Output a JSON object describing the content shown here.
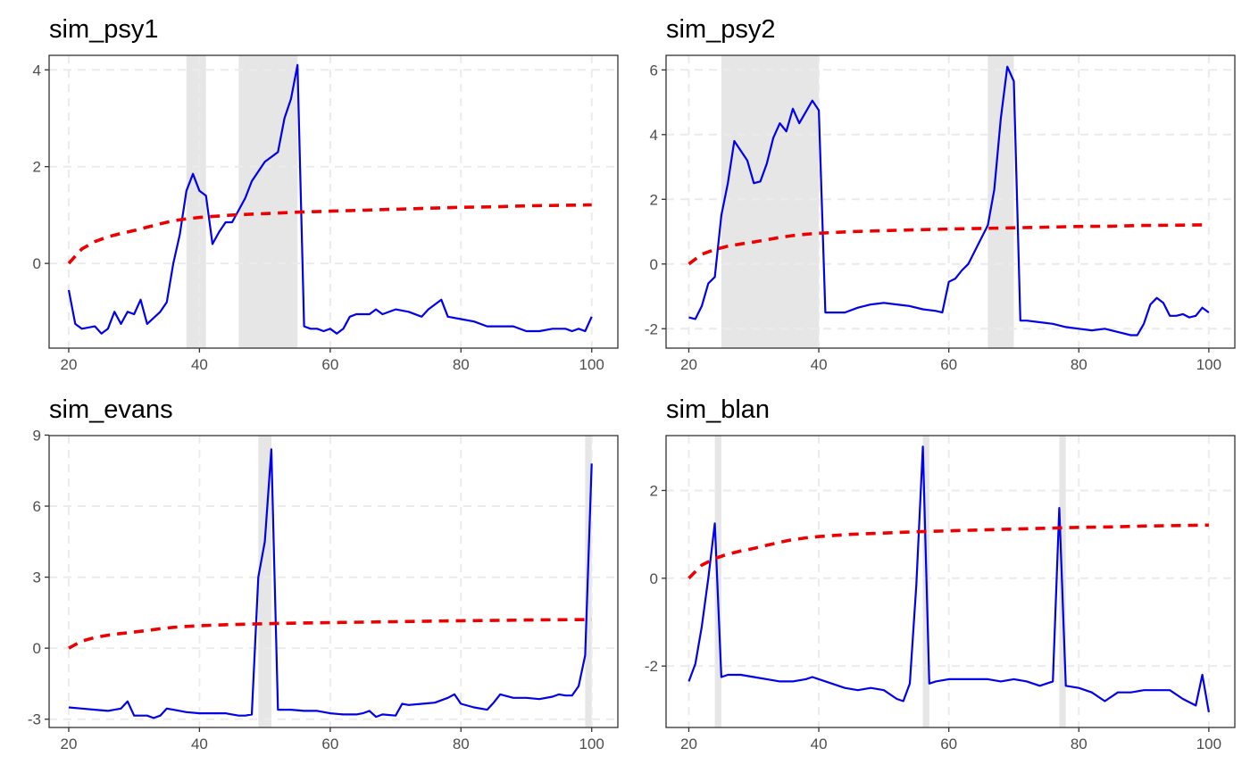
{
  "colors": {
    "stat_line": "#0000ee",
    "critical_value_line": "#ee0000",
    "shading": "#e6e6e6",
    "grid": "#ebebeb",
    "border": "#333333"
  },
  "chart_data": [
    {
      "type": "line",
      "title": "sim_psy1",
      "xlabel": "",
      "ylabel": "",
      "xlim": [
        17,
        104
      ],
      "ylim": [
        -1.75,
        4.3
      ],
      "xticks": [
        20,
        40,
        60,
        80,
        100
      ],
      "xtick_labels": [
        "20",
        "40",
        "60",
        "80",
        "100"
      ],
      "yticks": [
        0,
        2,
        4
      ],
      "ytick_labels": [
        "0",
        "2",
        "4"
      ],
      "grid": true,
      "legend": "none",
      "shaded_regions": [
        [
          38,
          41
        ],
        [
          46,
          55
        ]
      ],
      "series": [
        {
          "style": "solid",
          "color": "#0000ee",
          "x": [
            20,
            21,
            22,
            24,
            25,
            26,
            27,
            28,
            29,
            30,
            31,
            32,
            34,
            35,
            36,
            37,
            38,
            39,
            40,
            41,
            42,
            43,
            44,
            45,
            46,
            47,
            48,
            50,
            51,
            52,
            53,
            54,
            55,
            56,
            57,
            58,
            59,
            60,
            61,
            62,
            63,
            64,
            66,
            67,
            68,
            70,
            72,
            74,
            75,
            77,
            78,
            80,
            82,
            84,
            86,
            88,
            90,
            92,
            94,
            96,
            97,
            98,
            99,
            100
          ],
          "y": [
            -0.55,
            -1.25,
            -1.35,
            -1.3,
            -1.45,
            -1.35,
            -1.0,
            -1.25,
            -1.0,
            -1.05,
            -0.75,
            -1.25,
            -1.0,
            -0.8,
            0.0,
            0.6,
            1.5,
            1.85,
            1.5,
            1.4,
            0.4,
            0.65,
            0.85,
            0.85,
            1.1,
            1.35,
            1.7,
            2.1,
            2.2,
            2.3,
            3.0,
            3.4,
            4.1,
            -1.3,
            -1.35,
            -1.35,
            -1.4,
            -1.35,
            -1.45,
            -1.35,
            -1.1,
            -1.05,
            -1.05,
            -0.95,
            -1.05,
            -0.95,
            -1.0,
            -1.1,
            -0.95,
            -0.75,
            -1.1,
            -1.15,
            -1.2,
            -1.3,
            -1.3,
            -1.3,
            -1.4,
            -1.4,
            -1.35,
            -1.35,
            -1.4,
            -1.35,
            -1.4,
            -1.1
          ]
        },
        {
          "style": "dashed",
          "color": "#ee0000",
          "x": [
            20,
            21,
            22,
            24,
            26,
            28,
            30,
            32,
            34,
            36,
            38,
            40,
            45,
            50,
            55,
            60,
            65,
            70,
            75,
            80,
            85,
            90,
            95,
            100
          ],
          "y": [
            0.0,
            0.15,
            0.3,
            0.45,
            0.55,
            0.62,
            0.68,
            0.75,
            0.82,
            0.88,
            0.92,
            0.95,
            1.0,
            1.03,
            1.06,
            1.08,
            1.1,
            1.12,
            1.14,
            1.16,
            1.17,
            1.19,
            1.2,
            1.21
          ]
        }
      ]
    },
    {
      "type": "line",
      "title": "sim_psy2",
      "xlabel": "",
      "ylabel": "",
      "xlim": [
        16.5,
        104
      ],
      "ylim": [
        -2.6,
        6.45
      ],
      "xticks": [
        20,
        40,
        60,
        80,
        100
      ],
      "xtick_labels": [
        "20",
        "40",
        "60",
        "80",
        "100"
      ],
      "yticks": [
        -2,
        0,
        2,
        4,
        6
      ],
      "ytick_labels": [
        "-2",
        "0",
        "2",
        "4",
        "6"
      ],
      "grid": true,
      "legend": "none",
      "shaded_regions": [
        [
          25,
          40
        ],
        [
          66,
          70
        ]
      ],
      "series": [
        {
          "style": "solid",
          "color": "#0000ee",
          "x": [
            20,
            21,
            22,
            23,
            24,
            25,
            26,
            27,
            28,
            29,
            30,
            31,
            32,
            33,
            34,
            35,
            36,
            37,
            38,
            39,
            40,
            41,
            42,
            44,
            46,
            48,
            50,
            52,
            54,
            56,
            58,
            59,
            60,
            61,
            62,
            63,
            64,
            65,
            66,
            67,
            68,
            69,
            70,
            71,
            72,
            74,
            76,
            78,
            80,
            82,
            84,
            86,
            88,
            89,
            90,
            91,
            92,
            93,
            94,
            95,
            96,
            97,
            98,
            99,
            100
          ],
          "y": [
            -1.65,
            -1.7,
            -1.3,
            -0.6,
            -0.4,
            1.5,
            2.5,
            3.8,
            3.5,
            3.2,
            2.5,
            2.55,
            3.1,
            3.9,
            4.35,
            4.1,
            4.8,
            4.35,
            4.7,
            5.05,
            4.75,
            -1.5,
            -1.5,
            -1.5,
            -1.35,
            -1.25,
            -1.2,
            -1.25,
            -1.3,
            -1.4,
            -1.45,
            -1.5,
            -0.55,
            -0.45,
            -0.2,
            0.0,
            0.4,
            0.8,
            1.2,
            2.3,
            4.5,
            6.1,
            5.65,
            -1.75,
            -1.75,
            -1.8,
            -1.85,
            -1.95,
            -2.0,
            -2.05,
            -2.0,
            -2.1,
            -2.2,
            -2.2,
            -1.85,
            -1.25,
            -1.05,
            -1.2,
            -1.6,
            -1.6,
            -1.55,
            -1.65,
            -1.6,
            -1.35,
            -1.5
          ]
        },
        {
          "style": "dashed",
          "color": "#ee0000",
          "x": [
            20,
            21,
            22,
            24,
            26,
            28,
            30,
            32,
            34,
            36,
            38,
            40,
            45,
            50,
            55,
            60,
            65,
            70,
            75,
            80,
            85,
            90,
            95,
            100
          ],
          "y": [
            0.0,
            0.15,
            0.3,
            0.45,
            0.55,
            0.62,
            0.68,
            0.75,
            0.82,
            0.88,
            0.92,
            0.95,
            1.0,
            1.03,
            1.06,
            1.08,
            1.1,
            1.12,
            1.14,
            1.16,
            1.17,
            1.19,
            1.2,
            1.21
          ]
        }
      ]
    },
    {
      "type": "line",
      "title": "sim_evans",
      "xlabel": "",
      "ylabel": "",
      "xlim": [
        17,
        104
      ],
      "ylim": [
        -3.35,
        8.98
      ],
      "xticks": [
        20,
        40,
        60,
        80,
        100
      ],
      "xtick_labels": [
        "20",
        "40",
        "60",
        "80",
        "100"
      ],
      "yticks": [
        -3,
        0,
        3,
        6,
        9
      ],
      "ytick_labels": [
        "-3",
        "0",
        "3",
        "6",
        "9"
      ],
      "grid": true,
      "legend": "none",
      "shaded_regions": [
        [
          49,
          51
        ],
        [
          99,
          100
        ]
      ],
      "series": [
        {
          "style": "solid",
          "color": "#0000ee",
          "x": [
            20,
            22,
            24,
            26,
            28,
            29,
            30,
            32,
            33,
            34,
            35,
            36,
            38,
            40,
            42,
            44,
            45,
            46,
            47,
            48,
            49,
            50,
            51,
            52,
            54,
            56,
            58,
            60,
            62,
            64,
            65,
            66,
            67,
            68,
            70,
            71,
            72,
            74,
            76,
            78,
            79,
            80,
            82,
            84,
            85,
            86,
            88,
            90,
            92,
            94,
            95,
            96,
            97,
            98,
            99,
            100
          ],
          "y": [
            -2.5,
            -2.55,
            -2.6,
            -2.65,
            -2.55,
            -2.25,
            -2.85,
            -2.85,
            -2.95,
            -2.85,
            -2.55,
            -2.6,
            -2.7,
            -2.75,
            -2.75,
            -2.75,
            -2.8,
            -2.85,
            -2.85,
            -2.8,
            3.0,
            4.5,
            8.4,
            -2.6,
            -2.6,
            -2.65,
            -2.65,
            -2.75,
            -2.8,
            -2.8,
            -2.75,
            -2.65,
            -2.9,
            -2.8,
            -2.85,
            -2.35,
            -2.4,
            -2.35,
            -2.3,
            -2.1,
            -1.95,
            -2.35,
            -2.5,
            -2.6,
            -2.3,
            -1.95,
            -2.1,
            -2.1,
            -2.15,
            -2.05,
            -1.95,
            -2.0,
            -2.0,
            -1.6,
            -0.3,
            7.8
          ]
        },
        {
          "style": "dashed",
          "color": "#ee0000",
          "x": [
            20,
            21,
            22,
            24,
            26,
            28,
            30,
            32,
            34,
            36,
            38,
            40,
            45,
            50,
            55,
            60,
            65,
            70,
            75,
            80,
            85,
            90,
            95,
            100
          ],
          "y": [
            0.0,
            0.15,
            0.3,
            0.45,
            0.55,
            0.62,
            0.68,
            0.75,
            0.82,
            0.88,
            0.92,
            0.95,
            1.0,
            1.03,
            1.06,
            1.08,
            1.1,
            1.12,
            1.14,
            1.16,
            1.17,
            1.19,
            1.2,
            1.21
          ]
        }
      ]
    },
    {
      "type": "line",
      "title": "sim_blan",
      "xlabel": "",
      "ylabel": "",
      "xlim": [
        16.5,
        104
      ],
      "ylim": [
        -3.4,
        3.25
      ],
      "xticks": [
        20,
        40,
        60,
        80,
        100
      ],
      "xtick_labels": [
        "20",
        "40",
        "60",
        "80",
        "100"
      ],
      "yticks": [
        -2,
        0,
        2
      ],
      "ytick_labels": [
        "-2",
        "0",
        "2"
      ],
      "grid": true,
      "legend": "none",
      "shaded_regions": [
        [
          24,
          25
        ],
        [
          56,
          57
        ],
        [
          77,
          78
        ]
      ],
      "series": [
        {
          "style": "solid",
          "color": "#0000ee",
          "x": [
            20,
            21,
            22,
            23,
            24,
            25,
            26,
            28,
            30,
            32,
            34,
            36,
            38,
            39,
            40,
            42,
            44,
            46,
            48,
            50,
            52,
            53,
            54,
            55,
            56,
            57,
            58,
            60,
            62,
            64,
            66,
            68,
            70,
            72,
            74,
            76,
            77,
            78,
            80,
            82,
            84,
            86,
            88,
            90,
            92,
            94,
            96,
            98,
            99,
            100
          ],
          "y": [
            -2.35,
            -1.95,
            -1.1,
            0.0,
            1.25,
            -2.25,
            -2.2,
            -2.2,
            -2.25,
            -2.3,
            -2.35,
            -2.35,
            -2.3,
            -2.25,
            -2.3,
            -2.4,
            -2.5,
            -2.55,
            -2.5,
            -2.55,
            -2.75,
            -2.8,
            -2.4,
            -0.15,
            3.0,
            -2.4,
            -2.35,
            -2.3,
            -2.3,
            -2.3,
            -2.3,
            -2.35,
            -2.3,
            -2.35,
            -2.45,
            -2.35,
            1.6,
            -2.45,
            -2.5,
            -2.6,
            -2.8,
            -2.6,
            -2.6,
            -2.55,
            -2.55,
            -2.55,
            -2.75,
            -2.9,
            -2.2,
            -3.05
          ]
        },
        {
          "style": "dashed",
          "color": "#ee0000",
          "x": [
            20,
            21,
            22,
            24,
            26,
            28,
            30,
            32,
            34,
            36,
            38,
            40,
            45,
            50,
            55,
            60,
            65,
            70,
            75,
            80,
            85,
            90,
            95,
            100
          ],
          "y": [
            0.0,
            0.15,
            0.3,
            0.45,
            0.55,
            0.62,
            0.68,
            0.75,
            0.82,
            0.88,
            0.92,
            0.95,
            1.0,
            1.03,
            1.06,
            1.08,
            1.1,
            1.12,
            1.14,
            1.16,
            1.17,
            1.19,
            1.2,
            1.21
          ]
        }
      ]
    }
  ]
}
